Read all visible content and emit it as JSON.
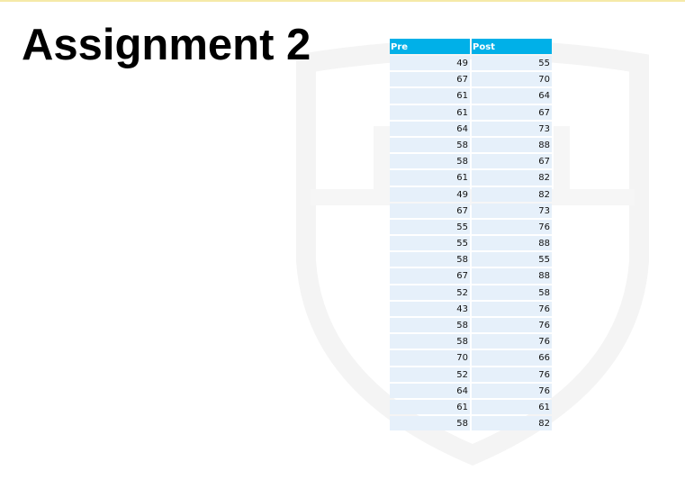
{
  "title": "Assignment 2",
  "table": {
    "headers": [
      "Pre",
      "Post"
    ],
    "rows": [
      [
        49,
        55
      ],
      [
        67,
        70
      ],
      [
        61,
        64
      ],
      [
        61,
        67
      ],
      [
        64,
        73
      ],
      [
        58,
        88
      ],
      [
        58,
        67
      ],
      [
        61,
        82
      ],
      [
        49,
        82
      ],
      [
        67,
        73
      ],
      [
        55,
        76
      ],
      [
        55,
        88
      ],
      [
        58,
        55
      ],
      [
        67,
        88
      ],
      [
        52,
        58
      ],
      [
        43,
        76
      ],
      [
        58,
        76
      ],
      [
        58,
        76
      ],
      [
        70,
        66
      ],
      [
        52,
        76
      ],
      [
        64,
        76
      ],
      [
        61,
        61
      ],
      [
        58,
        82
      ]
    ]
  },
  "colors": {
    "header": "#00b0e8",
    "cell": "#e6f0fa",
    "accent_line": "#f5e9a8"
  }
}
